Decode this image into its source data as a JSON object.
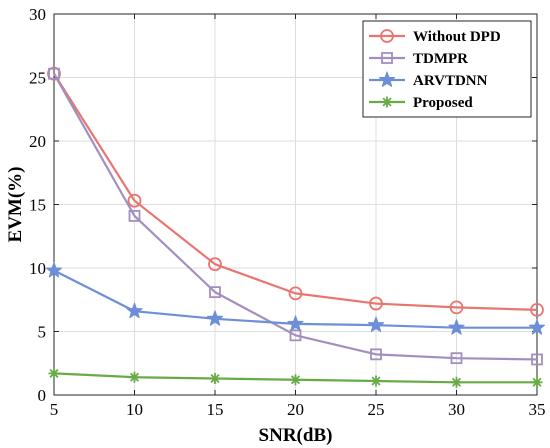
{
  "chart_data": {
    "type": "line",
    "xlabel": "SNR(dB)",
    "ylabel": "EVM(%)",
    "x": [
      5,
      10,
      15,
      20,
      25,
      30,
      35
    ],
    "xlim": [
      5,
      35
    ],
    "ylim": [
      0,
      30
    ],
    "xticks": [
      5,
      10,
      15,
      20,
      25,
      30,
      35
    ],
    "yticks": [
      0,
      5,
      10,
      15,
      20,
      25,
      30
    ],
    "grid": true,
    "legend_position": "top-right",
    "series": [
      {
        "name": "Without DPD",
        "marker": "circle",
        "color": "#e8766f",
        "values": [
          25.3,
          15.3,
          10.3,
          8.0,
          7.2,
          6.9,
          6.7
        ]
      },
      {
        "name": "TDMPR",
        "marker": "square",
        "color": "#a28fbf",
        "values": [
          25.3,
          14.1,
          8.1,
          4.7,
          3.2,
          2.9,
          2.8
        ]
      },
      {
        "name": "ARVTDNN",
        "marker": "star",
        "color": "#6d8fd8",
        "values": [
          9.8,
          6.6,
          6.0,
          5.6,
          5.5,
          5.3,
          5.3
        ]
      },
      {
        "name": "Proposed",
        "marker": "asterisk",
        "color": "#67ab46",
        "values": [
          1.7,
          1.4,
          1.3,
          1.2,
          1.1,
          1.0,
          1.0
        ]
      }
    ]
  }
}
